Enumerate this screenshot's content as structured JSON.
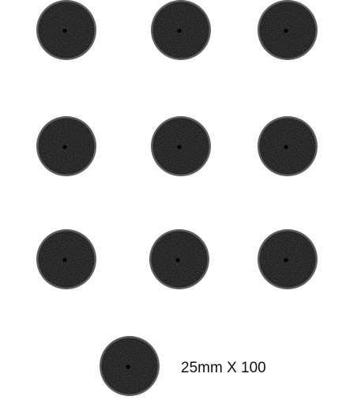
{
  "caption": "25mm X 100",
  "object": "round-base",
  "count_shown": 10,
  "colors": {
    "background": "#ffffff",
    "base_top": "#1b1b1b",
    "base_texture": "#2c2c2c",
    "rim": "#5e5e5e",
    "slot": "#000000"
  }
}
